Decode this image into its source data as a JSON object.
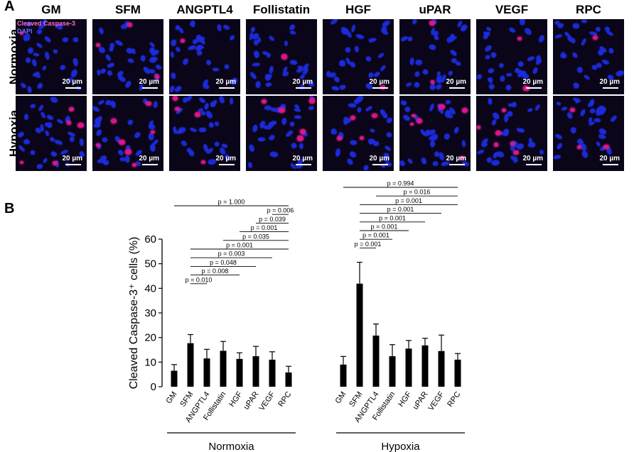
{
  "panel_a": {
    "letter": "A",
    "columns": [
      "GM",
      "SFM",
      "ANGPTL4",
      "Follistatin",
      "HGF",
      "uPAR",
      "VEGF",
      "RPC"
    ],
    "rows": [
      "Normoxia",
      "Hypoxia"
    ],
    "legend": {
      "stain1": "Cleaved Caspase-3",
      "stain2": "DAPI"
    },
    "stain_colors": {
      "stain1": "#ff6ec7",
      "stain2": "#6f6fff"
    },
    "scale_bar": "20 µm"
  },
  "panel_b": {
    "letter": "B"
  },
  "chart_data": {
    "type": "bar",
    "ylabel": "Cleaved Caspase-3⁺ cells (%)",
    "ylim": [
      0,
      60
    ],
    "yticks": [
      0,
      10,
      20,
      30,
      40,
      50,
      60
    ],
    "categories": [
      "GM",
      "SFM",
      "ANGPTL4",
      "Follistatin",
      "HGF",
      "uPAR",
      "VEGF",
      "RPC"
    ],
    "groups": [
      {
        "name": "Normoxia",
        "values": [
          6.5,
          17.7,
          11.5,
          14.6,
          11.3,
          12.4,
          11.0,
          5.8
        ],
        "errors": [
          2.5,
          3.5,
          3.7,
          3.8,
          2.5,
          4.0,
          3.2,
          2.5
        ],
        "comparisons": [
          {
            "from": 0,
            "to": 7,
            "p": "p = 1.000"
          },
          {
            "from": 6,
            "to": 7,
            "p": "p = 0.006"
          },
          {
            "from": 5,
            "to": 7,
            "p": "p = 0.039"
          },
          {
            "from": 4,
            "to": 7,
            "p": "p = 0.001"
          },
          {
            "from": 3,
            "to": 7,
            "p": "p = 0.035"
          },
          {
            "from": 1,
            "to": 7,
            "p": "p = 0.001"
          },
          {
            "from": 1,
            "to": 6,
            "p": "p = 0.003"
          },
          {
            "from": 1,
            "to": 5,
            "p": "p = 0.048"
          },
          {
            "from": 1,
            "to": 4,
            "p": "p = 0.008"
          },
          {
            "from": 1,
            "to": 2,
            "p": "p = 0.010"
          }
        ]
      },
      {
        "name": "Hypoxia",
        "values": [
          9.0,
          41.9,
          20.8,
          12.4,
          15.5,
          16.8,
          14.5,
          11.0
        ],
        "errors": [
          3.3,
          8.7,
          4.7,
          4.7,
          3.3,
          2.9,
          6.5,
          2.5
        ],
        "comparisons": [
          {
            "from": 0,
            "to": 7,
            "p": "p = 0.994"
          },
          {
            "from": 2,
            "to": 7,
            "p": "p = 0.016"
          },
          {
            "from": 1,
            "to": 7,
            "p": "p = 0.001"
          },
          {
            "from": 1,
            "to": 6,
            "p": "p = 0.001"
          },
          {
            "from": 1,
            "to": 5,
            "p": "p = 0.001"
          },
          {
            "from": 1,
            "to": 4,
            "p": "p = 0.001"
          },
          {
            "from": 1,
            "to": 3,
            "p": "p = 0.001"
          },
          {
            "from": 1,
            "to": 2,
            "p": "p = 0.001"
          }
        ]
      }
    ]
  }
}
